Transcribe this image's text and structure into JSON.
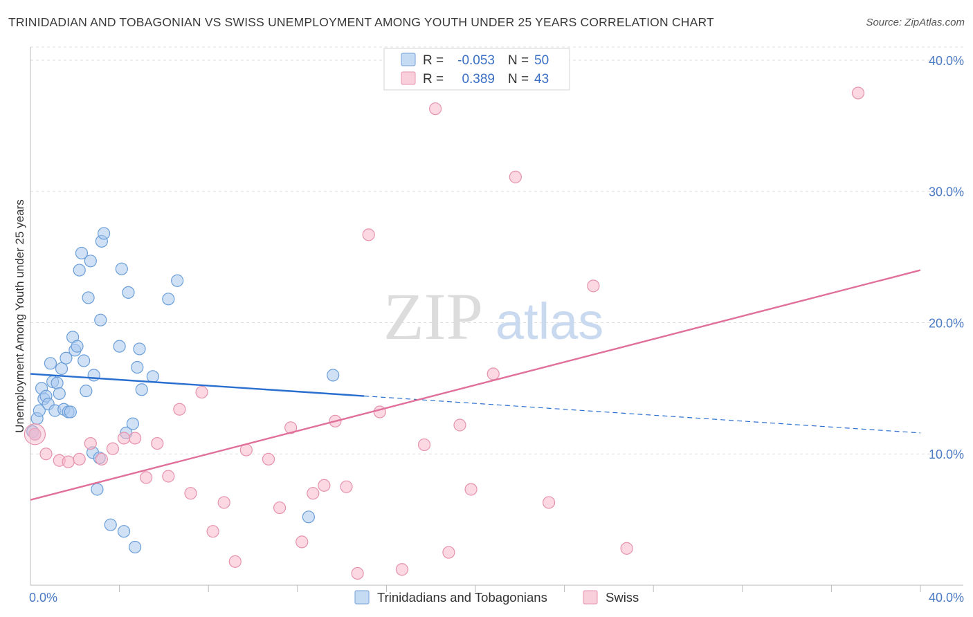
{
  "title": "TRINIDADIAN AND TOBAGONIAN VS SWISS UNEMPLOYMENT AMONG YOUTH UNDER 25 YEARS CORRELATION CHART",
  "source": "Source: ZipAtlas.com",
  "watermark": {
    "zip": "ZIP",
    "atlas": "atlas"
  },
  "legend_top": {
    "rows": [
      {
        "r_label": "R =",
        "r_value": "-0.053",
        "n_label": "N =",
        "n_value": "50",
        "color": "#a9c8ee"
      },
      {
        "r_label": "R =",
        "r_value": "0.389",
        "n_label": "N =",
        "n_value": "43",
        "color": "#f7b8cb"
      }
    ]
  },
  "legend_bottom": [
    {
      "label": "Trinidadians and Tobagonians",
      "color": "#a9c8ee"
    },
    {
      "label": "Swiss",
      "color": "#f7b8cb"
    }
  ],
  "chart_data": {
    "type": "scatter",
    "title": "TRINIDADIAN AND TOBAGONIAN VS SWISS UNEMPLOYMENT AMONG YOUTH UNDER 25 YEARS CORRELATION CHART",
    "xlabel": "",
    "ylabel": "Unemployment Among Youth under 25 years",
    "xlim": [
      0,
      40
    ],
    "ylim": [
      0,
      41
    ],
    "x_ticks": [
      {
        "value": 0,
        "label": "0.0%"
      },
      {
        "value": 40,
        "label": "40.0%"
      }
    ],
    "y_ticks": [
      {
        "value": 10,
        "label": "10.0%"
      },
      {
        "value": 20,
        "label": "20.0%"
      },
      {
        "value": 30,
        "label": "30.0%"
      },
      {
        "value": 40,
        "label": "40.0%"
      }
    ],
    "grid": true,
    "legend": "top-center",
    "series": [
      {
        "name": "Trinidadians and Tobagonians",
        "color": "#a9c8ee",
        "stroke": "#6a9ed8",
        "points": [
          [
            0.1,
            11.7
          ],
          [
            0.2,
            11.5
          ],
          [
            0.3,
            12.7
          ],
          [
            0.4,
            13.3
          ],
          [
            0.5,
            15.0
          ],
          [
            0.6,
            14.2
          ],
          [
            0.7,
            14.4
          ],
          [
            0.8,
            13.8
          ],
          [
            0.9,
            16.9
          ],
          [
            1.0,
            15.5
          ],
          [
            1.1,
            13.3
          ],
          [
            1.2,
            15.4
          ],
          [
            1.3,
            14.6
          ],
          [
            1.4,
            16.5
          ],
          [
            1.5,
            13.4
          ],
          [
            1.6,
            17.3
          ],
          [
            1.7,
            13.2
          ],
          [
            1.8,
            13.2
          ],
          [
            1.9,
            18.9
          ],
          [
            2.0,
            17.9
          ],
          [
            2.1,
            18.2
          ],
          [
            2.2,
            24.0
          ],
          [
            2.3,
            25.3
          ],
          [
            2.4,
            17.1
          ],
          [
            2.5,
            14.8
          ],
          [
            2.6,
            21.9
          ],
          [
            2.7,
            24.7
          ],
          [
            2.8,
            10.1
          ],
          [
            2.85,
            16.0
          ],
          [
            3.0,
            7.3
          ],
          [
            3.1,
            9.7
          ],
          [
            3.15,
            20.2
          ],
          [
            3.2,
            26.2
          ],
          [
            3.3,
            26.8
          ],
          [
            3.6,
            4.6
          ],
          [
            4.0,
            18.2
          ],
          [
            4.1,
            24.1
          ],
          [
            4.2,
            4.1
          ],
          [
            4.3,
            11.6
          ],
          [
            4.4,
            22.3
          ],
          [
            4.6,
            12.3
          ],
          [
            4.7,
            2.9
          ],
          [
            4.8,
            16.6
          ],
          [
            4.9,
            18.0
          ],
          [
            5.0,
            14.9
          ],
          [
            5.5,
            15.9
          ],
          [
            6.2,
            21.8
          ],
          [
            6.6,
            23.2
          ],
          [
            12.5,
            5.2
          ],
          [
            13.6,
            16.0
          ]
        ]
      },
      {
        "name": "Swiss",
        "color": "#f7b8cb",
        "stroke": "#e592ad",
        "points": [
          [
            0.2,
            11.5
          ],
          [
            0.7,
            10.0
          ],
          [
            1.3,
            9.5
          ],
          [
            1.7,
            9.4
          ],
          [
            2.2,
            9.6
          ],
          [
            2.7,
            10.8
          ],
          [
            3.2,
            9.6
          ],
          [
            3.7,
            10.4
          ],
          [
            4.2,
            11.2
          ],
          [
            4.7,
            11.2
          ],
          [
            5.2,
            8.2
          ],
          [
            5.7,
            10.8
          ],
          [
            6.2,
            8.3
          ],
          [
            6.7,
            13.4
          ],
          [
            7.2,
            7.0
          ],
          [
            7.7,
            14.7
          ],
          [
            8.2,
            4.1
          ],
          [
            8.7,
            6.3
          ],
          [
            9.2,
            1.8
          ],
          [
            9.7,
            10.3
          ],
          [
            10.7,
            9.6
          ],
          [
            11.2,
            5.9
          ],
          [
            11.7,
            12.0
          ],
          [
            12.2,
            3.3
          ],
          [
            12.7,
            7.0
          ],
          [
            13.2,
            7.6
          ],
          [
            13.7,
            12.5
          ],
          [
            14.2,
            7.5
          ],
          [
            14.7,
            0.9
          ],
          [
            15.2,
            26.7
          ],
          [
            15.7,
            13.2
          ],
          [
            16.7,
            1.2
          ],
          [
            17.7,
            10.7
          ],
          [
            18.2,
            36.3
          ],
          [
            18.8,
            2.5
          ],
          [
            19.3,
            12.2
          ],
          [
            19.8,
            7.3
          ],
          [
            20.8,
            16.1
          ],
          [
            21.8,
            31.1
          ],
          [
            23.3,
            6.3
          ],
          [
            25.3,
            22.8
          ],
          [
            26.8,
            2.8
          ],
          [
            37.2,
            37.5
          ]
        ]
      }
    ],
    "trendlines": [
      {
        "series": "Trinidadians and Tobagonians",
        "color": "#2a6fd0",
        "x_solid": [
          0,
          15
        ],
        "x_dashed": [
          15,
          40
        ],
        "intercept": 16.1,
        "slope": -0.1125
      },
      {
        "series": "Swiss",
        "color": "#e0709a",
        "x_solid": [
          0,
          40
        ],
        "intercept": 6.5,
        "slope": 0.4375
      }
    ]
  }
}
